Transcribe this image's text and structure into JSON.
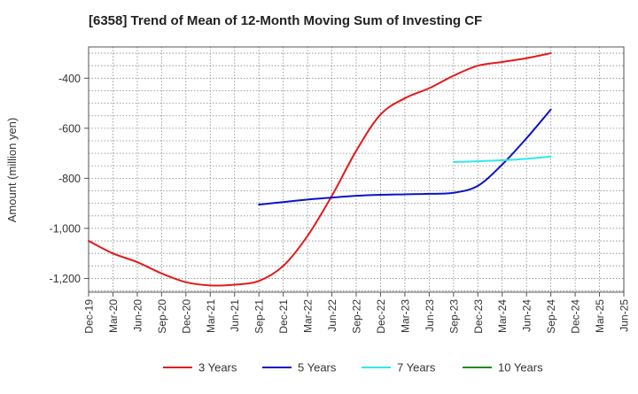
{
  "chart_data": {
    "type": "line",
    "title": "[6358]  Trend of Mean of 12-Month Moving Sum of Investing CF",
    "ylabel": "Amount (million yen)",
    "xlabel": "",
    "ylim": [
      -1255,
      -275
    ],
    "yticks": [
      -400,
      -600,
      -800,
      -1000,
      -1200
    ],
    "ytick_labels": [
      "-400",
      "-600",
      "-800",
      "-1,000",
      "-1,200"
    ],
    "x_categories": [
      "Dec-19",
      "Mar-20",
      "Jun-20",
      "Sep-20",
      "Dec-20",
      "Mar-21",
      "Jun-21",
      "Sep-21",
      "Dec-21",
      "Mar-22",
      "Jun-22",
      "Sep-22",
      "Dec-22",
      "Mar-23",
      "Jun-23",
      "Sep-23",
      "Dec-23",
      "Mar-24",
      "Jun-24",
      "Sep-24",
      "Dec-24",
      "Mar-25"
    ],
    "x_tick_labels": [
      "Dec-19",
      "Mar-20",
      "Jun-20",
      "Sep-20",
      "Dec-20",
      "Mar-21",
      "Jun-21",
      "Sep-21",
      "Dec-21",
      "Mar-22",
      "Jun-22",
      "Sep-22",
      "Dec-22",
      "Mar-23",
      "Jun-23",
      "Sep-23",
      "Dec-23",
      "Mar-24",
      "Jun-24",
      "Sep-24",
      "Dec-24",
      "Mar-25",
      "Jun-25"
    ],
    "grid": true,
    "legend_position": "bottom",
    "series": [
      {
        "name": "3 Years",
        "color": "#e31a1c",
        "values": [
          -1050,
          -1100,
          -1135,
          -1180,
          -1215,
          -1228,
          -1225,
          -1210,
          -1150,
          -1030,
          -870,
          -690,
          -545,
          -480,
          -440,
          -390,
          -350,
          -335,
          -320,
          -300,
          null,
          null
        ]
      },
      {
        "name": "5 Years",
        "color": "#0a14c8",
        "values": [
          null,
          null,
          null,
          null,
          null,
          null,
          null,
          -905,
          -895,
          -885,
          -877,
          -870,
          -866,
          -864,
          -862,
          -858,
          -830,
          -745,
          -640,
          -525,
          null,
          null
        ]
      },
      {
        "name": "7 Years",
        "color": "#33e6ee",
        "values": [
          null,
          null,
          null,
          null,
          null,
          null,
          null,
          null,
          null,
          null,
          null,
          null,
          null,
          null,
          null,
          -735,
          -732,
          -728,
          -722,
          -713,
          null,
          null
        ]
      },
      {
        "name": "10 Years",
        "color": "#1e8c1e",
        "values": [
          null,
          null,
          null,
          null,
          null,
          null,
          null,
          null,
          null,
          null,
          null,
          null,
          null,
          null,
          null,
          null,
          null,
          null,
          null,
          null,
          null,
          null
        ]
      }
    ]
  }
}
